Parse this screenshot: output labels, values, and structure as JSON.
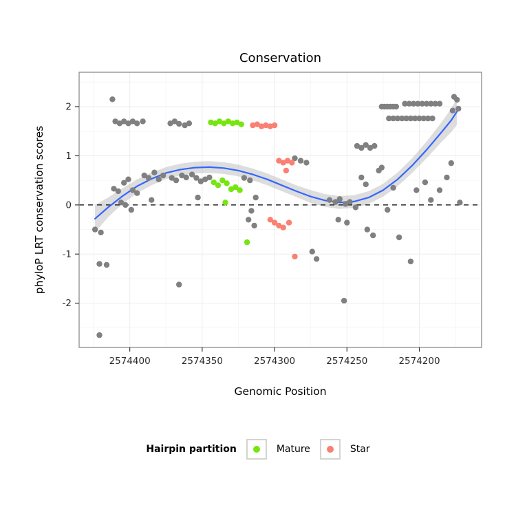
{
  "chart_data": {
    "type": "scatter",
    "title": "Conservation",
    "xlabel": "Genomic Position",
    "ylabel": "phyloP LRT conservation scores",
    "x_domain": [
      2574435,
      2574157
    ],
    "y_domain": [
      -2.9,
      2.7
    ],
    "x_ticks": [
      2574400,
      2574350,
      2574300,
      2574250,
      2574200
    ],
    "y_ticks": [
      -2,
      -1,
      0,
      1,
      2
    ],
    "x_axis_reversed": true,
    "grid": true,
    "reference_line_y": 0,
    "panel_border_color": "#8c8c8c",
    "legend": {
      "title": "Hairpin partition",
      "position": "bottom",
      "entries": [
        {
          "label": "Mature",
          "color": "#76E511"
        },
        {
          "label": "Star",
          "color": "#FA8072"
        }
      ]
    },
    "series": [
      {
        "name": "unpartitioned",
        "color": "#808080",
        "points": [
          [
            2574424,
            -0.5
          ],
          [
            2574420,
            -0.56
          ],
          [
            2574421,
            -1.2
          ],
          [
            2574416,
            -1.22
          ],
          [
            2574412,
            2.15
          ],
          [
            2574421,
            -2.65
          ],
          [
            2574410,
            1.7
          ],
          [
            2574407,
            1.66
          ],
          [
            2574404,
            1.7
          ],
          [
            2574401,
            1.66
          ],
          [
            2574398,
            1.7
          ],
          [
            2574395,
            1.66
          ],
          [
            2574391,
            1.7
          ],
          [
            2574411,
            0.33
          ],
          [
            2574408,
            0.28
          ],
          [
            2574404,
            0.45
          ],
          [
            2574401,
            0.52
          ],
          [
            2574398,
            0.3
          ],
          [
            2574395,
            0.24
          ],
          [
            2574406,
            0.05
          ],
          [
            2574403,
            0.0
          ],
          [
            2574399,
            -0.1
          ],
          [
            2574390,
            0.6
          ],
          [
            2574387,
            0.55
          ],
          [
            2574385,
            0.1
          ],
          [
            2574383,
            0.66
          ],
          [
            2574380,
            0.52
          ],
          [
            2574377,
            0.6
          ],
          [
            2574372,
            1.66
          ],
          [
            2574369,
            1.7
          ],
          [
            2574366,
            1.65
          ],
          [
            2574362,
            1.62
          ],
          [
            2574359,
            1.66
          ],
          [
            2574371,
            0.55
          ],
          [
            2574368,
            0.5
          ],
          [
            2574364,
            0.6
          ],
          [
            2574361,
            0.56
          ],
          [
            2574357,
            0.62
          ],
          [
            2574354,
            0.55
          ],
          [
            2574351,
            0.48
          ],
          [
            2574348,
            0.52
          ],
          [
            2574345,
            0.56
          ],
          [
            2574353,
            0.15
          ],
          [
            2574366,
            -1.62
          ],
          [
            2574321,
            0.55
          ],
          [
            2574317,
            0.5
          ],
          [
            2574316,
            -0.12
          ],
          [
            2574318,
            -0.3
          ],
          [
            2574314,
            -0.42
          ],
          [
            2574313,
            0.15
          ],
          [
            2574286,
            0.95
          ],
          [
            2574282,
            0.9
          ],
          [
            2574278,
            0.86
          ],
          [
            2574274,
            -0.95
          ],
          [
            2574271,
            -1.1
          ],
          [
            2574262,
            0.1
          ],
          [
            2574258,
            0.06
          ],
          [
            2574255,
            0.12
          ],
          [
            2574251,
            0.02
          ],
          [
            2574248,
            0.06
          ],
          [
            2574256,
            -0.3
          ],
          [
            2574250,
            -0.36
          ],
          [
            2574252,
            -1.95
          ],
          [
            2574244,
            -0.05
          ],
          [
            2574243,
            1.2
          ],
          [
            2574240,
            1.16
          ],
          [
            2574237,
            1.22
          ],
          [
            2574234,
            1.16
          ],
          [
            2574231,
            1.2
          ],
          [
            2574240,
            0.56
          ],
          [
            2574237,
            0.42
          ],
          [
            2574236,
            -0.5
          ],
          [
            2574232,
            -0.62
          ],
          [
            2574228,
            0.7
          ],
          [
            2574226,
            0.76
          ],
          [
            2574226,
            2.0
          ],
          [
            2574224,
            2.0
          ],
          [
            2574222,
            2.0
          ],
          [
            2574220,
            2.0
          ],
          [
            2574218,
            2.0
          ],
          [
            2574216,
            2.0
          ],
          [
            2574221,
            1.76
          ],
          [
            2574218,
            1.76
          ],
          [
            2574215,
            1.76
          ],
          [
            2574212,
            1.76
          ],
          [
            2574209,
            1.76
          ],
          [
            2574206,
            1.76
          ],
          [
            2574203,
            1.76
          ],
          [
            2574200,
            1.76
          ],
          [
            2574197,
            1.76
          ],
          [
            2574194,
            1.76
          ],
          [
            2574191,
            1.76
          ],
          [
            2574210,
            2.06
          ],
          [
            2574207,
            2.06
          ],
          [
            2574204,
            2.06
          ],
          [
            2574201,
            2.06
          ],
          [
            2574198,
            2.06
          ],
          [
            2574195,
            2.06
          ],
          [
            2574192,
            2.06
          ],
          [
            2574189,
            2.06
          ],
          [
            2574186,
            2.06
          ],
          [
            2574222,
            -0.1
          ],
          [
            2574218,
            0.35
          ],
          [
            2574214,
            -0.66
          ],
          [
            2574206,
            -1.15
          ],
          [
            2574202,
            0.3
          ],
          [
            2574196,
            0.46
          ],
          [
            2574192,
            0.1
          ],
          [
            2574186,
            0.3
          ],
          [
            2574181,
            0.56
          ],
          [
            2574176,
            2.2
          ],
          [
            2574174,
            2.14
          ],
          [
            2574177,
            1.92
          ],
          [
            2574173,
            1.96
          ],
          [
            2574178,
            0.85
          ],
          [
            2574172,
            0.05
          ]
        ]
      },
      {
        "name": "Mature",
        "color": "#76E511",
        "points": [
          [
            2574344,
            1.68
          ],
          [
            2574341,
            1.66
          ],
          [
            2574338,
            1.7
          ],
          [
            2574335,
            1.66
          ],
          [
            2574332,
            1.7
          ],
          [
            2574329,
            1.66
          ],
          [
            2574326,
            1.68
          ],
          [
            2574323,
            1.64
          ],
          [
            2574342,
            0.46
          ],
          [
            2574339,
            0.4
          ],
          [
            2574336,
            0.5
          ],
          [
            2574333,
            0.44
          ],
          [
            2574330,
            0.32
          ],
          [
            2574327,
            0.36
          ],
          [
            2574324,
            0.3
          ],
          [
            2574334,
            0.05
          ],
          [
            2574319,
            -0.76
          ]
        ]
      },
      {
        "name": "Star",
        "color": "#FA8072",
        "points": [
          [
            2574315,
            1.62
          ],
          [
            2574312,
            1.64
          ],
          [
            2574309,
            1.6
          ],
          [
            2574306,
            1.62
          ],
          [
            2574303,
            1.6
          ],
          [
            2574300,
            1.62
          ],
          [
            2574297,
            0.9
          ],
          [
            2574294,
            0.86
          ],
          [
            2574291,
            0.9
          ],
          [
            2574288,
            0.86
          ],
          [
            2574292,
            0.7
          ],
          [
            2574303,
            -0.3
          ],
          [
            2574300,
            -0.36
          ],
          [
            2574297,
            -0.42
          ],
          [
            2574294,
            -0.46
          ],
          [
            2574290,
            -0.36
          ],
          [
            2574286,
            -1.05
          ]
        ]
      }
    ],
    "smooth": {
      "color": "#3366FF",
      "band_color": "#9e9e9e",
      "band_opacity": 0.35,
      "points": [
        [
          2574424,
          -0.28,
          0.28
        ],
        [
          2574415,
          -0.05,
          0.2
        ],
        [
          2574405,
          0.18,
          0.16
        ],
        [
          2574395,
          0.38,
          0.14
        ],
        [
          2574385,
          0.53,
          0.13
        ],
        [
          2574375,
          0.65,
          0.12
        ],
        [
          2574365,
          0.72,
          0.12
        ],
        [
          2574355,
          0.76,
          0.12
        ],
        [
          2574345,
          0.77,
          0.12
        ],
        [
          2574335,
          0.75,
          0.12
        ],
        [
          2574325,
          0.7,
          0.12
        ],
        [
          2574315,
          0.62,
          0.12
        ],
        [
          2574305,
          0.52,
          0.12
        ],
        [
          2574295,
          0.4,
          0.12
        ],
        [
          2574285,
          0.28,
          0.12
        ],
        [
          2574275,
          0.17,
          0.13
        ],
        [
          2574265,
          0.09,
          0.13
        ],
        [
          2574255,
          0.05,
          0.13
        ],
        [
          2574245,
          0.07,
          0.13
        ],
        [
          2574235,
          0.15,
          0.13
        ],
        [
          2574225,
          0.3,
          0.13
        ],
        [
          2574215,
          0.52,
          0.14
        ],
        [
          2574205,
          0.8,
          0.15
        ],
        [
          2574195,
          1.12,
          0.17
        ],
        [
          2574185,
          1.47,
          0.2
        ],
        [
          2574178,
          1.72,
          0.24
        ],
        [
          2574174,
          1.9,
          0.27
        ]
      ]
    }
  }
}
